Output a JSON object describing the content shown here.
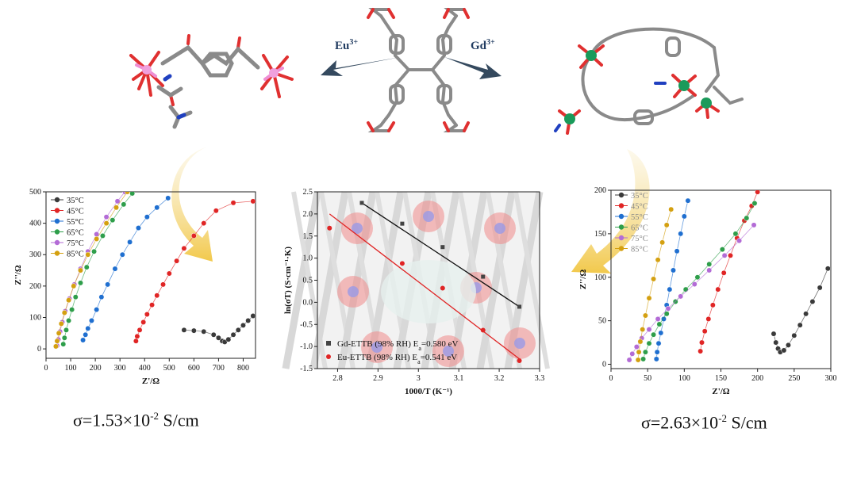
{
  "top": {
    "ion_left": "Eu",
    "ion_left_sup": "3+",
    "ion_right": "Gd",
    "ion_right_sup": "3+"
  },
  "bottom": {
    "sigma_left_base": "σ=1.53×10",
    "sigma_left_exp": "-2",
    "sigma_left_unit": " S/cm",
    "sigma_right_base": "σ=2.63×10",
    "sigma_right_exp": "-2",
    "sigma_right_unit": " S/cm"
  },
  "colors": {
    "35": "#3a3a3a",
    "45": "#e02525",
    "55": "#1f6fd0",
    "65": "#2e9e4a",
    "75": "#b36bd6",
    "85": "#d4a010",
    "arrow": "#f2c94c",
    "molecule": "#9a9a9a"
  },
  "chart_data": [
    {
      "type": "scatter",
      "id": "left-nyquist",
      "xlabel": "Z'/Ω",
      "ylabel": "Z''/Ω",
      "xlim": [
        0,
        850
      ],
      "ylim": [
        -30,
        500
      ],
      "xticks": [
        0,
        100,
        200,
        300,
        400,
        500,
        600,
        700,
        800
      ],
      "yticks": [
        0,
        100,
        200,
        300,
        400,
        500
      ],
      "legend_position": "top-left",
      "series": [
        {
          "name": "35°C",
          "key": "35",
          "points": [
            [
              560,
              60
            ],
            [
              600,
              58
            ],
            [
              640,
              55
            ],
            [
              680,
              45
            ],
            [
              700,
              35
            ],
            [
              715,
              25
            ],
            [
              725,
              22
            ],
            [
              740,
              30
            ],
            [
              760,
              45
            ],
            [
              780,
              60
            ],
            [
              800,
              75
            ],
            [
              820,
              90
            ],
            [
              840,
              105
            ]
          ]
        },
        {
          "name": "45°C",
          "key": "45",
          "points": [
            [
              365,
              25
            ],
            [
              370,
              40
            ],
            [
              380,
              60
            ],
            [
              395,
              85
            ],
            [
              410,
              110
            ],
            [
              430,
              140
            ],
            [
              450,
              170
            ],
            [
              475,
              205
            ],
            [
              500,
              240
            ],
            [
              530,
              280
            ],
            [
              560,
              320
            ],
            [
              600,
              360
            ],
            [
              640,
              400
            ],
            [
              690,
              440
            ],
            [
              760,
              465
            ],
            [
              840,
              470
            ]
          ]
        },
        {
          "name": "55°C",
          "key": "55",
          "points": [
            [
              150,
              28
            ],
            [
              160,
              45
            ],
            [
              170,
              65
            ],
            [
              185,
              90
            ],
            [
              205,
              125
            ],
            [
              225,
              165
            ],
            [
              250,
              205
            ],
            [
              280,
              255
            ],
            [
              310,
              300
            ],
            [
              340,
              340
            ],
            [
              375,
              385
            ],
            [
              410,
              420
            ],
            [
              450,
              450
            ],
            [
              495,
              480
            ]
          ]
        },
        {
          "name": "65°C",
          "key": "65",
          "points": [
            [
              70,
              15
            ],
            [
              75,
              35
            ],
            [
              82,
              60
            ],
            [
              92,
              90
            ],
            [
              105,
              125
            ],
            [
              120,
              165
            ],
            [
              140,
              210
            ],
            [
              165,
              260
            ],
            [
              195,
              310
            ],
            [
              230,
              360
            ],
            [
              270,
              410
            ],
            [
              315,
              460
            ],
            [
              350,
              495
            ]
          ]
        },
        {
          "name": "75°C",
          "key": "75",
          "points": [
            [
              45,
              10
            ],
            [
              50,
              30
            ],
            [
              57,
              55
            ],
            [
              66,
              85
            ],
            [
              78,
              120
            ],
            [
              95,
              160
            ],
            [
              115,
              205
            ],
            [
              140,
              255
            ],
            [
              170,
              310
            ],
            [
              205,
              365
            ],
            [
              245,
              420
            ],
            [
              290,
              470
            ],
            [
              320,
              500
            ]
          ]
        },
        {
          "name": "85°C",
          "key": "85",
          "points": [
            [
              40,
              8
            ],
            [
              45,
              25
            ],
            [
              52,
              50
            ],
            [
              62,
              80
            ],
            [
              75,
              115
            ],
            [
              92,
              155
            ],
            [
              112,
              200
            ],
            [
              140,
              250
            ],
            [
              170,
              300
            ],
            [
              205,
              350
            ],
            [
              245,
              400
            ],
            [
              285,
              450
            ],
            [
              330,
              500
            ]
          ]
        }
      ]
    },
    {
      "type": "line",
      "id": "arrhenius",
      "xlabel": "1000/T (K⁻¹)",
      "ylabel": "ln(σT) (S·cm⁻¹·K)",
      "xlim": [
        2.75,
        3.3
      ],
      "ylim": [
        -1.5,
        2.5
      ],
      "xticks": [
        2.8,
        2.9,
        3.0,
        3.1,
        3.2,
        3.3
      ],
      "yticks": [
        -1.5,
        -1.0,
        -0.5,
        0.0,
        0.5,
        1.0,
        1.5,
        2.0,
        2.5
      ],
      "legend_position": "bottom-left",
      "series": [
        {
          "name": "Gd-ETTB (98% RH)",
          "key": "35",
          "label_ea": "E",
          "label_sub": "a",
          "label_val": "=0.580 eV",
          "points": [
            [
              2.86,
              2.25
            ],
            [
              2.96,
              1.78
            ],
            [
              3.06,
              1.25
            ],
            [
              3.16,
              0.58
            ],
            [
              3.25,
              -0.1
            ]
          ],
          "fit": [
            [
              2.86,
              2.25
            ],
            [
              3.25,
              -0.1
            ]
          ]
        },
        {
          "name": "Eu-ETTB (98% RH)",
          "key": "45",
          "label_ea": "E",
          "label_sub": "a",
          "label_val": "=0.541 eV",
          "points": [
            [
              2.78,
              1.68
            ],
            [
              2.96,
              0.88
            ],
            [
              3.06,
              0.32
            ],
            [
              3.16,
              -0.63
            ],
            [
              3.25,
              -1.32
            ]
          ],
          "fit": [
            [
              2.78,
              2.0
            ],
            [
              3.25,
              -1.28
            ]
          ]
        }
      ]
    },
    {
      "type": "scatter",
      "id": "right-nyquist",
      "xlabel": "Z'/Ω",
      "ylabel": "Z''/Ω",
      "xlim": [
        0,
        300
      ],
      "ylim": [
        -5,
        200
      ],
      "xticks": [
        0,
        50,
        100,
        150,
        200,
        250,
        300
      ],
      "yticks": [
        0,
        50,
        100,
        150,
        200
      ],
      "legend_position": "top-left",
      "series": [
        {
          "name": "35°C",
          "key": "35",
          "points": [
            [
              222,
              35
            ],
            [
              225,
              25
            ],
            [
              228,
              18
            ],
            [
              231,
              14
            ],
            [
              236,
              16
            ],
            [
              242,
              22
            ],
            [
              250,
              33
            ],
            [
              258,
              45
            ],
            [
              266,
              58
            ],
            [
              275,
              72
            ],
            [
              285,
              88
            ],
            [
              296,
              110
            ]
          ]
        },
        {
          "name": "45°C",
          "key": "45",
          "points": [
            [
              122,
              15
            ],
            [
              124,
              25
            ],
            [
              128,
              38
            ],
            [
              133,
              52
            ],
            [
              139,
              68
            ],
            [
              146,
              86
            ],
            [
              154,
              105
            ],
            [
              163,
              125
            ],
            [
              172,
              145
            ],
            [
              182,
              165
            ],
            [
              192,
              182
            ],
            [
              200,
              198
            ]
          ]
        },
        {
          "name": "55°C",
          "key": "55",
          "points": [
            [
              62,
              6
            ],
            [
              63,
              14
            ],
            [
              65,
              24
            ],
            [
              68,
              36
            ],
            [
              72,
              52
            ],
            [
              76,
              68
            ],
            [
              80,
              86
            ],
            [
              85,
              108
            ],
            [
              90,
              130
            ],
            [
              95,
              150
            ],
            [
              100,
              170
            ],
            [
              105,
              188
            ]
          ]
        },
        {
          "name": "65°C",
          "key": "65",
          "points": [
            [
              44,
              6
            ],
            [
              47,
              14
            ],
            [
              52,
              24
            ],
            [
              58,
              34
            ],
            [
              66,
              46
            ],
            [
              76,
              58
            ],
            [
              88,
              72
            ],
            [
              102,
              86
            ],
            [
              118,
              100
            ],
            [
              134,
              115
            ],
            [
              152,
              132
            ],
            [
              170,
              150
            ],
            [
              185,
              168
            ],
            [
              196,
              185
            ]
          ]
        },
        {
          "name": "75°C",
          "key": "75",
          "points": [
            [
              25,
              5
            ],
            [
              29,
              12
            ],
            [
              35,
              20
            ],
            [
              42,
              30
            ],
            [
              52,
              40
            ],
            [
              64,
              52
            ],
            [
              78,
              64
            ],
            [
              95,
              78
            ],
            [
              114,
              92
            ],
            [
              134,
              108
            ],
            [
              155,
              125
            ],
            [
              175,
              142
            ],
            [
              195,
              160
            ]
          ]
        },
        {
          "name": "85°C",
          "key": "85",
          "points": [
            [
              37,
              5
            ],
            [
              38,
              14
            ],
            [
              40,
              26
            ],
            [
              43,
              40
            ],
            [
              47,
              56
            ],
            [
              52,
              76
            ],
            [
              58,
              98
            ],
            [
              64,
              120
            ],
            [
              70,
              140
            ],
            [
              76,
              160
            ],
            [
              82,
              178
            ]
          ]
        }
      ]
    }
  ]
}
